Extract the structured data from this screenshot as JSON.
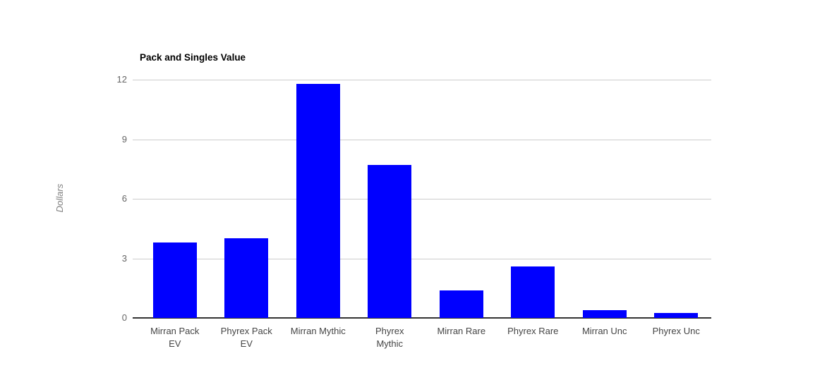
{
  "chart_data": {
    "type": "bar",
    "title": "Pack and Singles Value",
    "xlabel": "",
    "ylabel": "Dollars",
    "categories": [
      "Mirran Pack EV",
      "Phyrex Pack EV",
      "Mirran Mythic",
      "Phyrex Mythic",
      "Mirran Rare",
      "Phyrex Rare",
      "Mirran Unc",
      "Phyrex Unc"
    ],
    "category_lines": [
      [
        "Mirran Pack",
        "EV"
      ],
      [
        "Phyrex Pack",
        "EV"
      ],
      [
        "Mirran Mythic"
      ],
      [
        "Phyrex",
        "Mythic"
      ],
      [
        "Mirran Rare"
      ],
      [
        "Phyrex Rare"
      ],
      [
        "Mirran Unc"
      ],
      [
        "Phyrex Unc"
      ]
    ],
    "values": [
      3.8,
      4.0,
      11.8,
      7.7,
      1.4,
      2.6,
      0.4,
      0.25
    ],
    "yticks": [
      0,
      3,
      6,
      9,
      12
    ],
    "ylim": [
      0,
      12
    ],
    "grid": true,
    "legend": "none",
    "bar_color": "#0000FF",
    "gridline_color": "#CCCCCC",
    "baseline_color": "#333333",
    "ytick_color": "#666666",
    "xtick_color": "#444444",
    "title_color": "#000000",
    "ylabel_color": "#808080",
    "background_color": "#FFFFFF"
  }
}
